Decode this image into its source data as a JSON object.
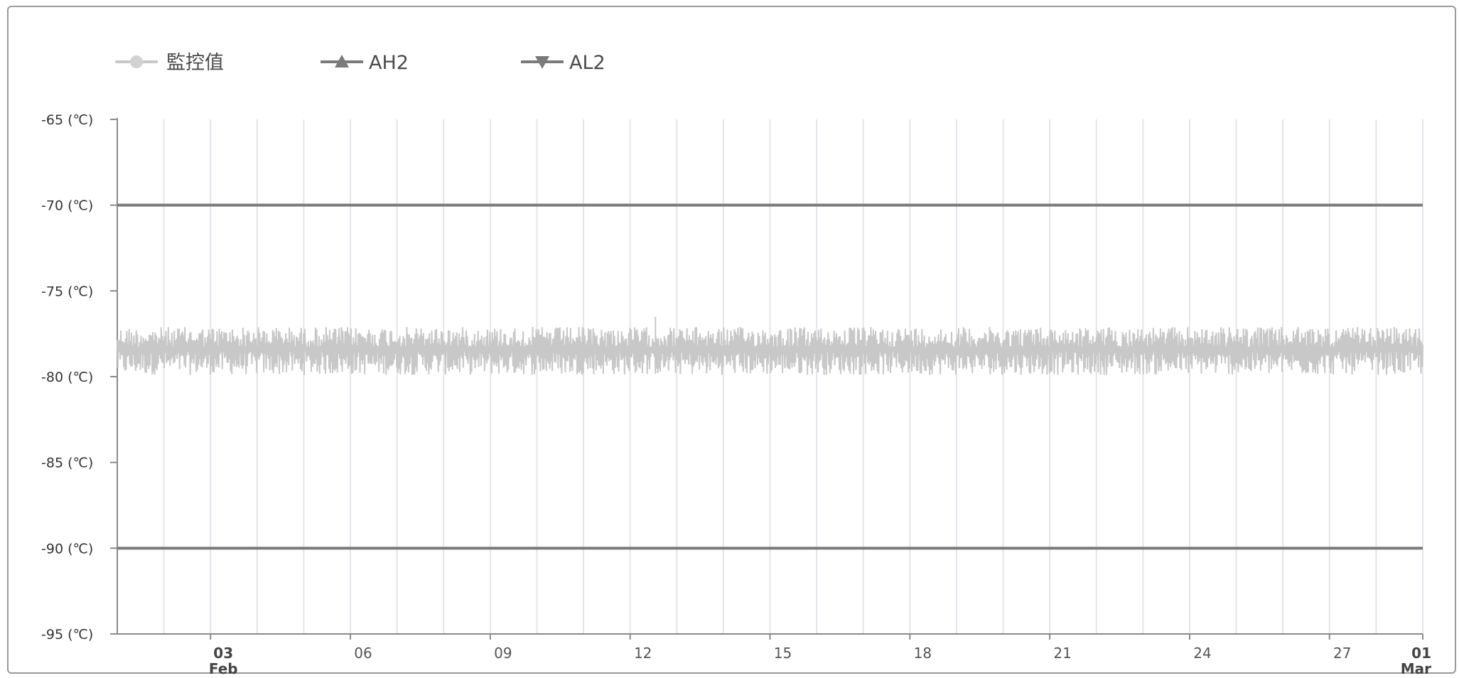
{
  "chart_data": {
    "type": "line",
    "legend": {
      "placement": "top-left",
      "entries": [
        "監控值",
        "AH2",
        "AL2"
      ]
    },
    "y_axis": {
      "ylim": [
        -95,
        -65
      ],
      "ticks": [
        -65,
        -70,
        -75,
        -80,
        -85,
        -90,
        -95
      ],
      "tick_labels": [
        "-65 (℃)",
        "-70 (℃)",
        "-75 (℃)",
        "-80 (℃)",
        "-85 (℃)",
        "-90 (℃)",
        "-95 (℃)"
      ]
    },
    "x_axis": {
      "xlim": [
        "2025-02-01",
        "2025-03-01"
      ],
      "grid": true,
      "ticks": [
        {
          "date": "2025-02-03",
          "label": "03",
          "sublabel": "Feb",
          "bold": true
        },
        {
          "date": "2025-02-06",
          "label": "06",
          "sublabel": "",
          "bold": false
        },
        {
          "date": "2025-02-09",
          "label": "09",
          "sublabel": "",
          "bold": false
        },
        {
          "date": "2025-02-12",
          "label": "12",
          "sublabel": "",
          "bold": false
        },
        {
          "date": "2025-02-15",
          "label": "15",
          "sublabel": "",
          "bold": false
        },
        {
          "date": "2025-02-18",
          "label": "18",
          "sublabel": "",
          "bold": false
        },
        {
          "date": "2025-02-21",
          "label": "21",
          "sublabel": "",
          "bold": false
        },
        {
          "date": "2025-02-24",
          "label": "24",
          "sublabel": "",
          "bold": false
        },
        {
          "date": "2025-02-27",
          "label": "27",
          "sublabel": "",
          "bold": false
        },
        {
          "date": "2025-03-01",
          "label": "01",
          "sublabel": "Mar",
          "bold": true
        }
      ]
    },
    "series": [
      {
        "name": "監控值",
        "color": "#c8c8c8",
        "marker": "circle",
        "kind": "noisy-band",
        "center": -78.4,
        "band": [
          -79.9,
          -77.1
        ],
        "spike": {
          "date": "2025-02-13",
          "value": -76.5
        }
      },
      {
        "name": "AH2",
        "color": "#7a7a7a",
        "marker": "triangle-up",
        "kind": "constant",
        "value": -70
      },
      {
        "name": "AL2",
        "color": "#7a7a7a",
        "marker": "triangle-down",
        "kind": "constant",
        "value": -90
      }
    ]
  }
}
